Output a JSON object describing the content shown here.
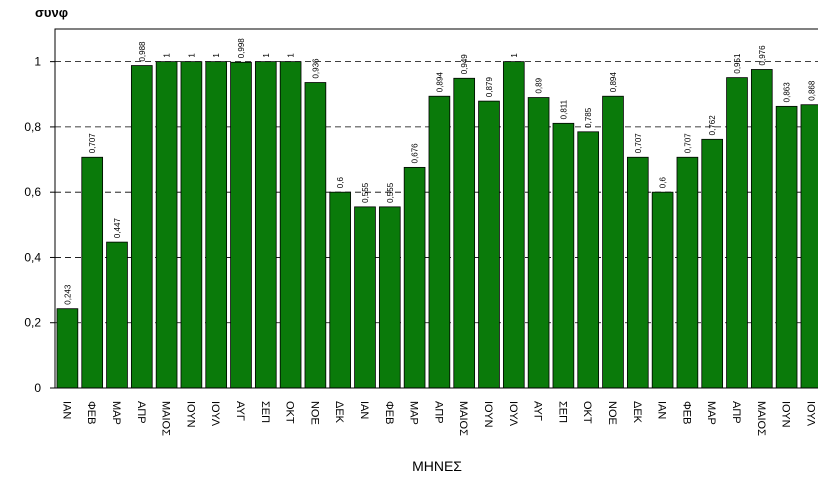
{
  "chart_data": {
    "type": "bar",
    "title": "συνφ",
    "x_label": "ΜΗΝΕΣ",
    "categories": [
      "ΙΑΝ",
      "ΦΕΒ",
      "ΜΑΡ",
      "ΑΠΡ",
      "ΜΑΙΟΣ",
      "ΙΟΥΝ",
      "ΙΟΥΛ",
      "ΑΥΓ",
      "ΣΕΠ",
      "ΟΚΤ",
      "ΝΟΕ",
      "ΔΕΚ",
      "ΙΑΝ",
      "ΦΕΒ",
      "ΜΑΡ",
      "ΑΠΡ",
      "ΜΑΙΟΣ",
      "ΙΟΥΝ",
      "ΙΟΥΛ",
      "ΑΥΓ",
      "ΣΕΠ",
      "ΟΚΤ",
      "ΝΟΕ",
      "ΔΕΚ",
      "ΙΑΝ",
      "ΦΕΒ",
      "ΜΑΡ",
      "ΑΠΡ",
      "ΜΑΙΟΣ",
      "ΙΟΥΝ",
      "ΙΟΥΛ"
    ],
    "values": [
      0.243,
      0.707,
      0.447,
      0.988,
      1,
      1,
      1,
      0.998,
      1,
      1,
      0.936,
      0.6,
      0.555,
      0.555,
      0.676,
      0.894,
      0.949,
      0.879,
      1,
      0.89,
      0.811,
      0.785,
      0.894,
      0.707,
      0.6,
      0.707,
      0.762,
      0.951,
      0.976,
      0.863,
      0.868
    ],
    "value_labels": [
      "0,243",
      "0,707",
      "0,447",
      "0,988",
      "1",
      "1",
      "1",
      "0,998",
      "1",
      "1",
      "0,936",
      "0,6",
      "0,555",
      "0,555",
      "0,676",
      "0,894",
      "0,949",
      "0,879",
      "1",
      "0,89",
      "0,811",
      "0,785",
      "0,894",
      "0,707",
      "0,6",
      "0,707",
      "0,762",
      "0,951",
      "0,976",
      "0,863",
      "0,868"
    ],
    "color": "#0a7a0a",
    "ylim": [
      0,
      1.1
    ],
    "yticks": [
      0,
      {
        "value": 0.2,
        "label": "0,2"
      },
      {
        "value": 0.4,
        "label": "0,4"
      },
      {
        "value": 0.6,
        "label": "0,6"
      },
      {
        "value": 0.8,
        "label": "0,8"
      },
      1
    ],
    "grid": true
  }
}
